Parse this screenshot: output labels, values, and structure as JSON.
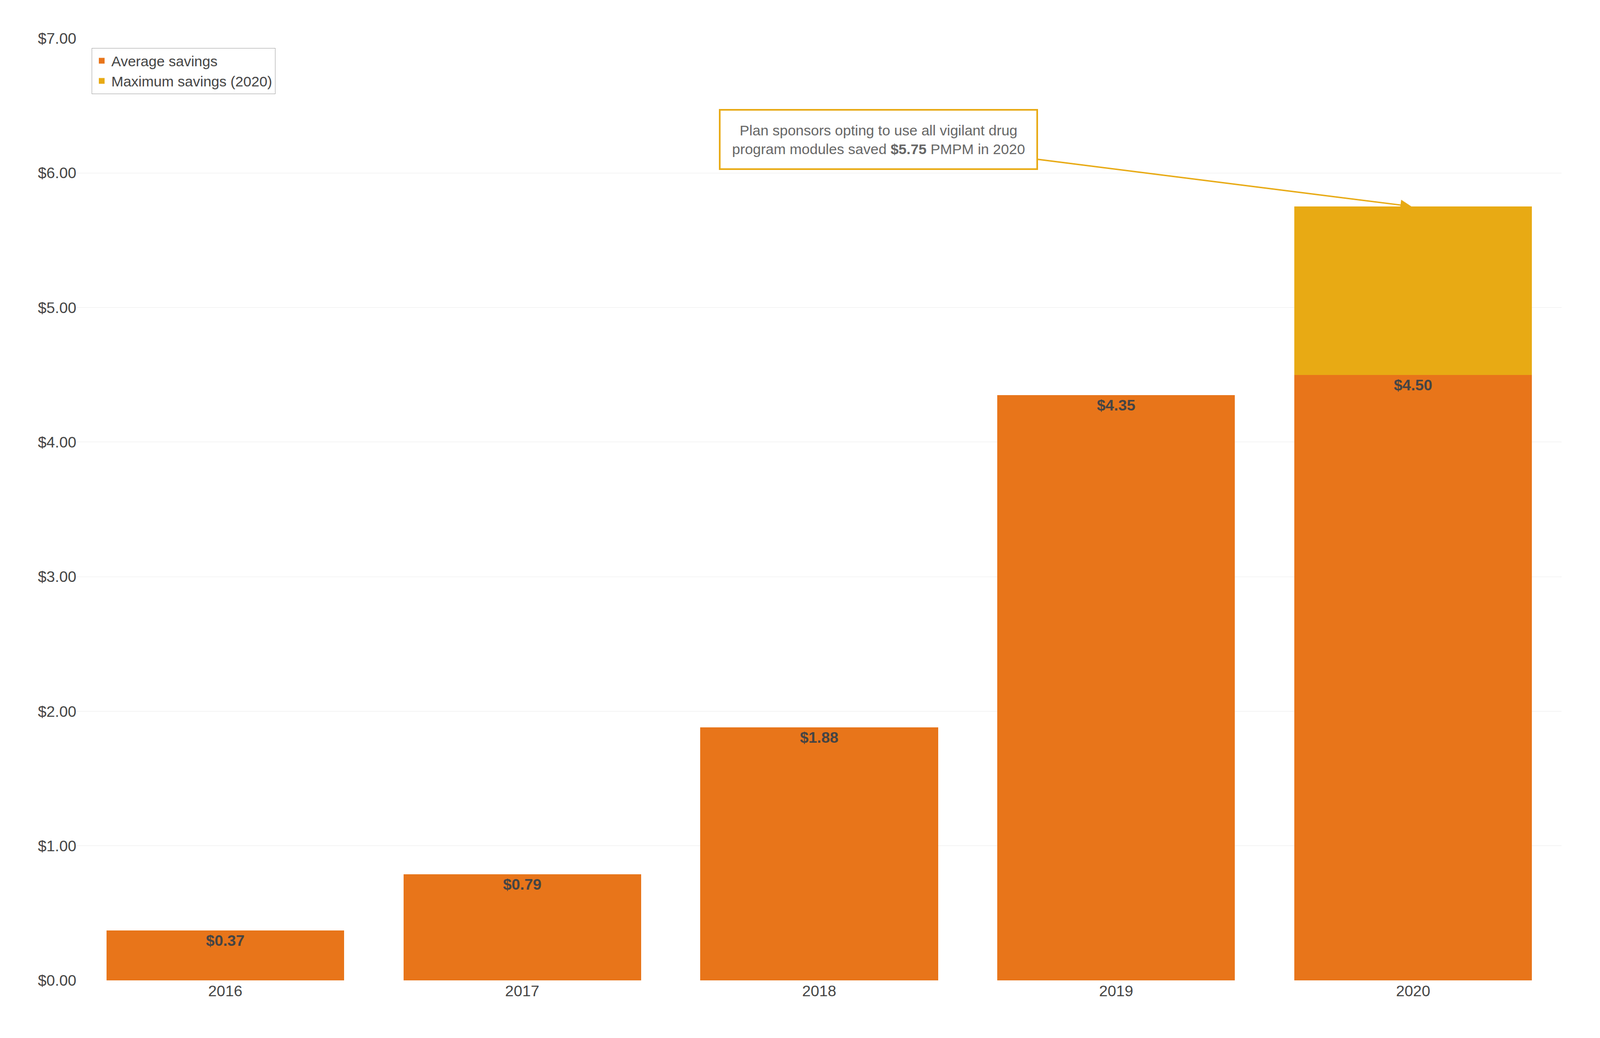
{
  "chart_data": {
    "type": "bar",
    "stacked": true,
    "categories": [
      "2016",
      "2017",
      "2018",
      "2019",
      "2020"
    ],
    "series": [
      {
        "name": "Average savings",
        "color": "#E8751A",
        "values": [
          0.37,
          0.79,
          1.88,
          4.35,
          4.5
        ],
        "data_labels": true,
        "value_labels": [
          "$0.37",
          "$0.79",
          "$1.88",
          "$4.35",
          "$4.50"
        ]
      },
      {
        "name": "Maximum savings (2020)",
        "color": "#E8AA14",
        "values": [
          0.0,
          0.0,
          0.0,
          0.0,
          1.25
        ]
      }
    ],
    "ylim": [
      0,
      7.0
    ],
    "yticks": [
      {
        "value": 0.0,
        "label": "$0.00"
      },
      {
        "value": 1.0,
        "label": "$1.00"
      },
      {
        "value": 2.0,
        "label": "$2.00"
      },
      {
        "value": 3.0,
        "label": "$3.00"
      },
      {
        "value": 4.0,
        "label": "$4.00"
      },
      {
        "value": 5.0,
        "label": "$5.00"
      },
      {
        "value": 6.0,
        "label": "$6.00"
      },
      {
        "value": 7.0,
        "label": "$7.00"
      }
    ],
    "grid": true,
    "legend": "upper left",
    "annotation": "Plan sponsors opting to use all vigilant drug\nprogram modules saved $5.75 PMPM in 2020"
  }
}
